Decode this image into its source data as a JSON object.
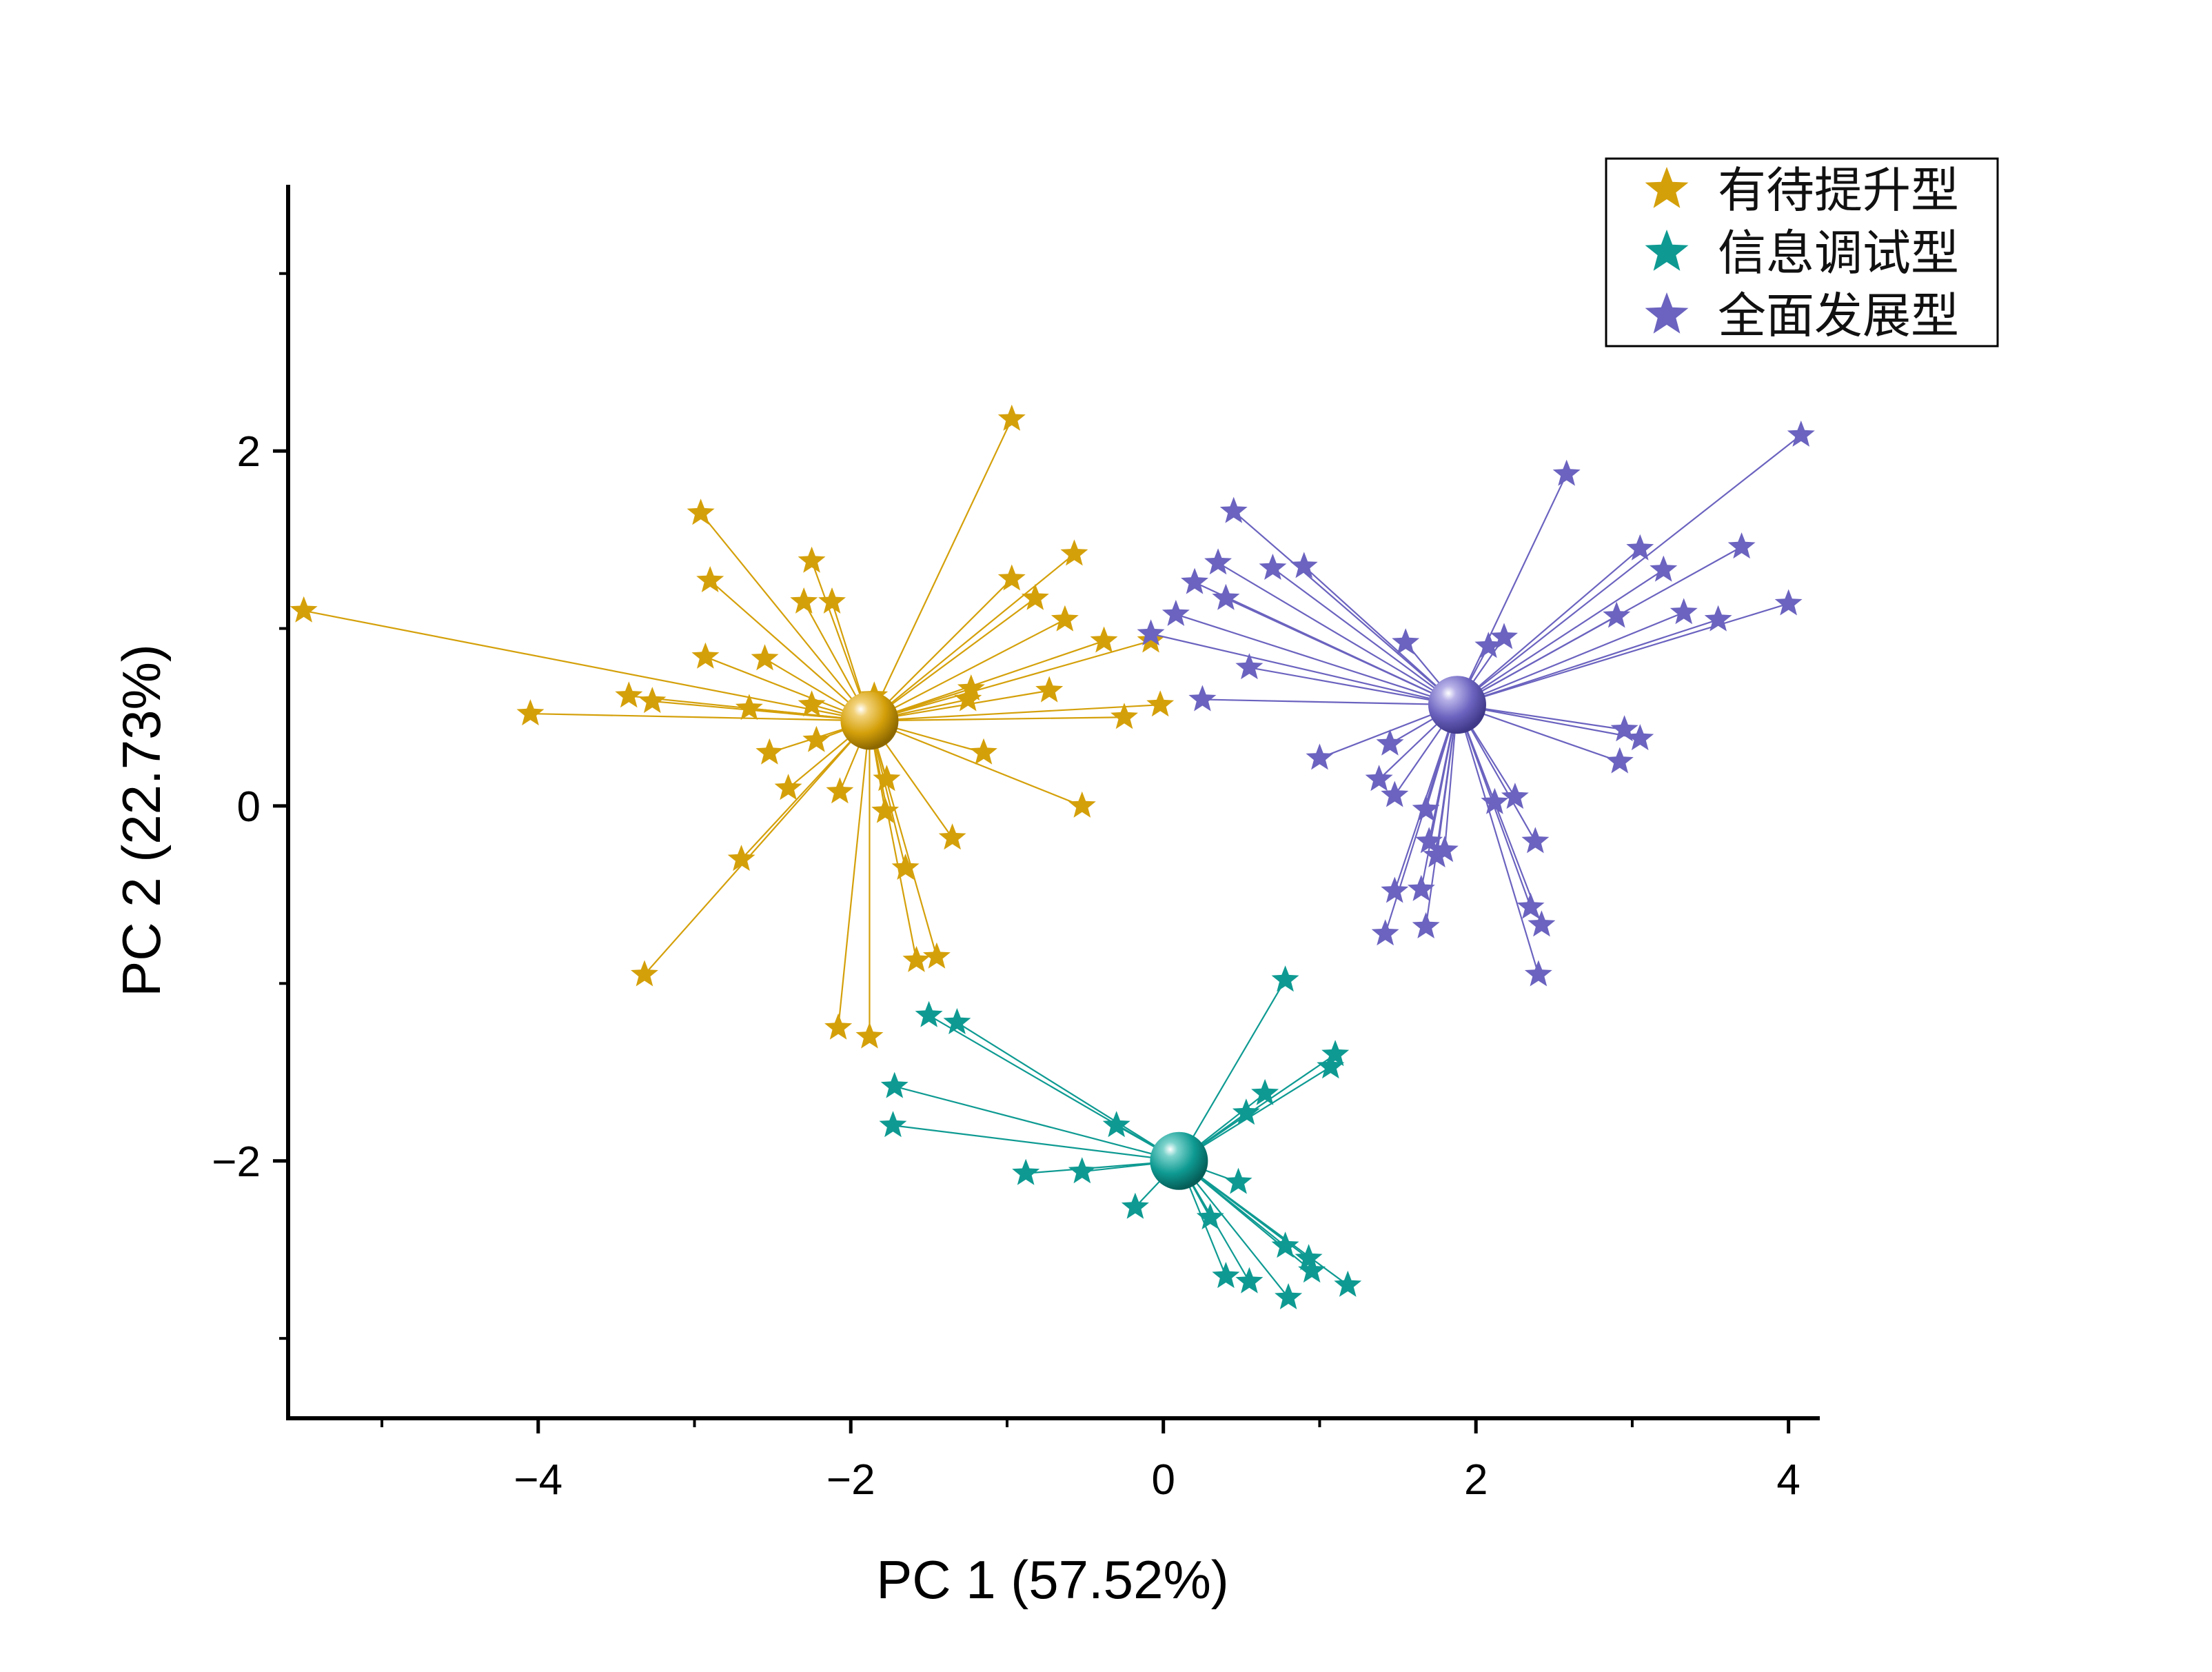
{
  "chart_data": {
    "type": "scatter",
    "xlabel": "PC 1 (57.52%)",
    "ylabel": "PC 2 (22.73%)",
    "xlim": [
      -5.6,
      4.2
    ],
    "ylim": [
      -3.45,
      3.5
    ],
    "x_ticks": [
      -4,
      -2,
      0,
      2,
      4
    ],
    "y_ticks": [
      -2,
      0,
      2
    ],
    "x_tick_labels": [
      "−4",
      "−2",
      "0",
      "2",
      "4"
    ],
    "y_tick_labels": [
      "−2",
      "0",
      "2"
    ],
    "legend_position": "top-right",
    "series": [
      {
        "name": "有待提升型",
        "color": "#D4A00A",
        "centroid": [
          -1.88,
          0.48
        ],
        "points": [
          [
            -5.5,
            1.1
          ],
          [
            -4.05,
            0.52
          ],
          [
            -3.42,
            0.62
          ],
          [
            -3.27,
            0.59
          ],
          [
            -2.96,
            1.65
          ],
          [
            -2.9,
            1.27
          ],
          [
            -2.93,
            0.84
          ],
          [
            -2.55,
            0.83
          ],
          [
            -2.65,
            0.55
          ],
          [
            -2.52,
            0.3
          ],
          [
            -2.4,
            0.1
          ],
          [
            -2.3,
            1.15
          ],
          [
            -2.25,
            1.38
          ],
          [
            -2.25,
            0.57
          ],
          [
            -2.22,
            0.37
          ],
          [
            -2.12,
            1.15
          ],
          [
            -2.07,
            0.08
          ],
          [
            -1.85,
            0.62
          ],
          [
            -1.77,
            0.15
          ],
          [
            -1.78,
            -0.03
          ],
          [
            -1.65,
            -0.35
          ],
          [
            -1.58,
            -0.87
          ],
          [
            -1.45,
            -0.85
          ],
          [
            -1.35,
            -0.18
          ],
          [
            -1.25,
            0.6
          ],
          [
            -1.23,
            0.66
          ],
          [
            -1.15,
            0.3
          ],
          [
            -0.97,
            2.18
          ],
          [
            -0.97,
            1.28
          ],
          [
            -0.82,
            1.17
          ],
          [
            -0.73,
            0.65
          ],
          [
            -0.63,
            1.05
          ],
          [
            -0.57,
            1.42
          ],
          [
            -0.52,
            0.0
          ],
          [
            -0.38,
            0.93
          ],
          [
            -0.25,
            0.5
          ],
          [
            -0.08,
            0.93
          ],
          [
            -0.02,
            0.57
          ],
          [
            -2.7,
            -0.3
          ],
          [
            -3.32,
            -0.95
          ],
          [
            -2.08,
            -1.25
          ],
          [
            -1.88,
            -1.3
          ]
        ]
      },
      {
        "name": "信息调试型",
        "color": "#0E9A92",
        "centroid": [
          0.1,
          -2.0
        ],
        "points": [
          [
            -1.5,
            -1.18
          ],
          [
            -1.32,
            -1.22
          ],
          [
            -1.72,
            -1.58
          ],
          [
            -1.73,
            -1.8
          ],
          [
            -0.88,
            -2.07
          ],
          [
            -0.52,
            -2.06
          ],
          [
            -0.18,
            -2.26
          ],
          [
            -0.3,
            -1.8
          ],
          [
            0.78,
            -0.98
          ],
          [
            1.1,
            -1.4
          ],
          [
            1.07,
            -1.47
          ],
          [
            0.65,
            -1.62
          ],
          [
            0.53,
            -1.73
          ],
          [
            0.48,
            -2.12
          ],
          [
            0.3,
            -2.32
          ],
          [
            0.4,
            -2.65
          ],
          [
            0.55,
            -2.68
          ],
          [
            0.78,
            -2.48
          ],
          [
            0.8,
            -2.77
          ],
          [
            0.93,
            -2.55
          ],
          [
            0.95,
            -2.62
          ],
          [
            1.18,
            -2.7
          ]
        ]
      },
      {
        "name": "全面发展型",
        "color": "#6B63BF",
        "centroid": [
          1.88,
          0.57
        ],
        "points": [
          [
            -0.08,
            0.97
          ],
          [
            0.08,
            1.08
          ],
          [
            0.2,
            1.26
          ],
          [
            0.25,
            0.6
          ],
          [
            0.35,
            1.37
          ],
          [
            0.4,
            1.17
          ],
          [
            0.45,
            1.66
          ],
          [
            0.55,
            0.78
          ],
          [
            0.7,
            1.34
          ],
          [
            0.9,
            1.35
          ],
          [
            1.0,
            0.27
          ],
          [
            1.38,
            0.15
          ],
          [
            1.45,
            0.35
          ],
          [
            1.48,
            0.06
          ],
          [
            1.48,
            -0.48
          ],
          [
            1.42,
            -0.72
          ],
          [
            1.55,
            0.92
          ],
          [
            1.65,
            -0.47
          ],
          [
            1.68,
            -0.68
          ],
          [
            1.68,
            -0.02
          ],
          [
            1.7,
            -0.2
          ],
          [
            1.75,
            -0.28
          ],
          [
            1.8,
            -0.25
          ],
          [
            2.08,
            0.9
          ],
          [
            2.12,
            0.02
          ],
          [
            2.18,
            0.95
          ],
          [
            2.25,
            0.05
          ],
          [
            2.35,
            -0.57
          ],
          [
            2.38,
            -0.2
          ],
          [
            2.4,
            -0.95
          ],
          [
            2.42,
            -0.67
          ],
          [
            2.58,
            1.87
          ],
          [
            2.9,
            1.07
          ],
          [
            2.92,
            0.25
          ],
          [
            2.95,
            0.43
          ],
          [
            3.05,
            0.38
          ],
          [
            3.05,
            1.45
          ],
          [
            3.2,
            1.33
          ],
          [
            3.33,
            1.09
          ],
          [
            3.55,
            1.05
          ],
          [
            3.7,
            1.46
          ],
          [
            4.0,
            1.14
          ],
          [
            4.08,
            2.09
          ]
        ]
      }
    ]
  }
}
